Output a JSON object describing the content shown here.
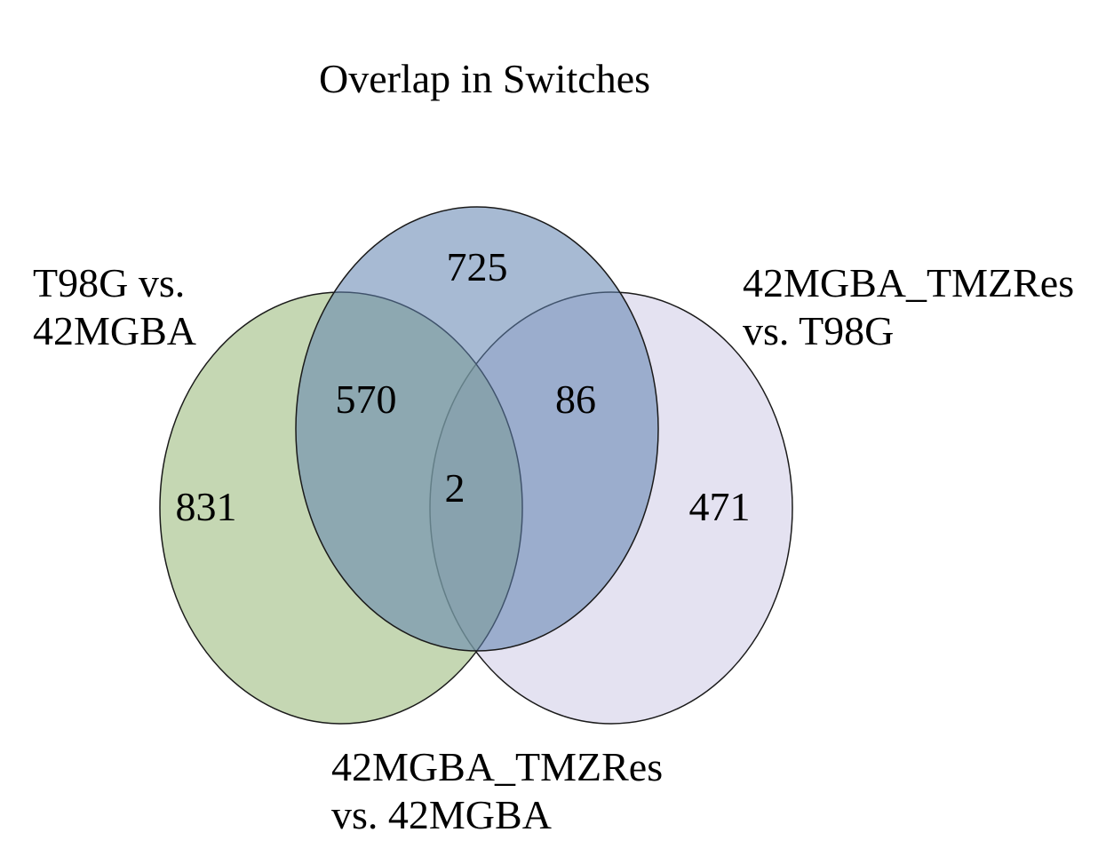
{
  "title": "Overlap in Switches",
  "sets": [
    {
      "id": "A",
      "label_lines": [
        "T98G vs.",
        "42MGBA"
      ],
      "color": "#9ebd80",
      "opacity": 0.6
    },
    {
      "id": "B",
      "label_lines": [
        "42MGBA_TMZRes",
        "vs. 42MGBA"
      ],
      "color": "#5f81ae",
      "opacity": 0.55
    },
    {
      "id": "C",
      "label_lines": [
        "42MGBA_TMZRes",
        "vs. T98G"
      ],
      "color": "#c9c5e3",
      "opacity": 0.5
    }
  ],
  "regions": {
    "only_A": "831",
    "only_B": "725",
    "only_C": "471",
    "A_B": "570",
    "B_C": "86",
    "A_B_C": "2"
  },
  "stroke_color": "#1a1a1a"
}
